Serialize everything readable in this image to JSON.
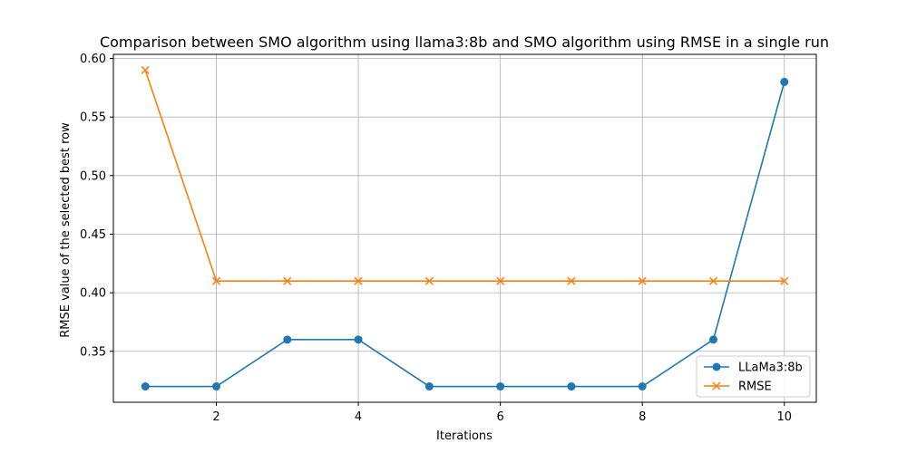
{
  "chart_data": {
    "type": "line",
    "title": "Comparison between SMO algorithm using llama3:8b and SMO algorithm using RMSE in a single run",
    "xlabel": "Iterations",
    "ylabel": "RMSE value of the selected best row",
    "x": [
      1,
      2,
      3,
      4,
      5,
      6,
      7,
      8,
      9,
      10
    ],
    "xlim": [
      0.55,
      10.45
    ],
    "ylim": [
      0.3065,
      0.6035
    ],
    "xticks": [
      2,
      4,
      6,
      8,
      10
    ],
    "xtick_labels": [
      "2",
      "4",
      "6",
      "8",
      "10"
    ],
    "yticks": [
      0.35,
      0.4,
      0.45,
      0.5,
      0.55,
      0.6
    ],
    "ytick_labels": [
      "0.35",
      "0.40",
      "0.45",
      "0.50",
      "0.55",
      "0.60"
    ],
    "grid": true,
    "legend_position": "lower right",
    "series": [
      {
        "name": "LLaMa3:8b",
        "marker": "circle",
        "color": "#1f77b4",
        "values": [
          0.32,
          0.32,
          0.36,
          0.36,
          0.32,
          0.32,
          0.32,
          0.32,
          0.36,
          0.58
        ]
      },
      {
        "name": "RMSE",
        "marker": "x",
        "color": "#ff7f0e",
        "values": [
          0.59,
          0.41,
          0.41,
          0.41,
          0.41,
          0.41,
          0.41,
          0.41,
          0.41,
          0.41
        ]
      }
    ]
  }
}
